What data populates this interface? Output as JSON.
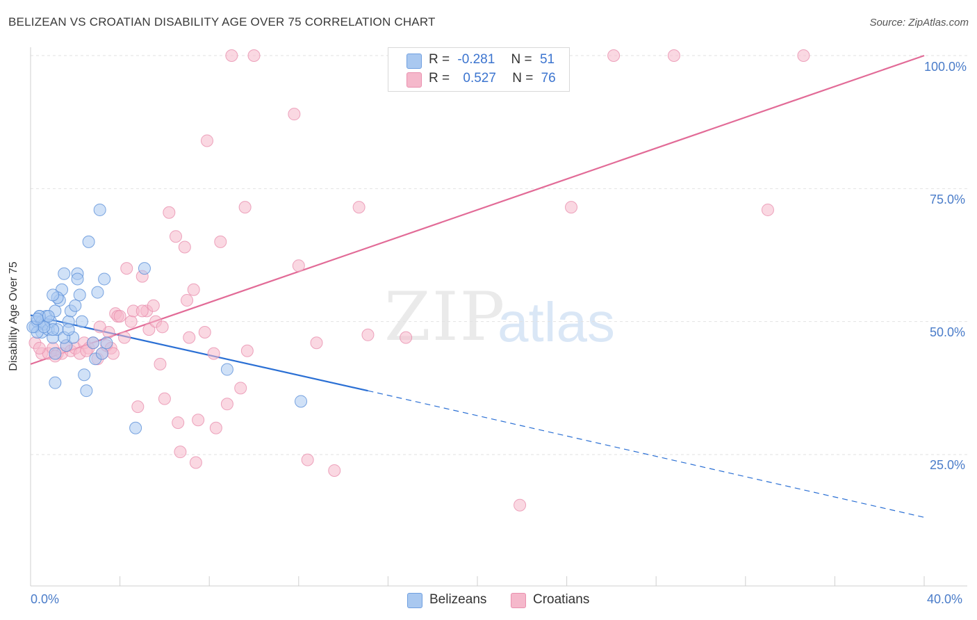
{
  "header": {
    "title": "BELIZEAN VS CROATIAN DISABILITY AGE OVER 75 CORRELATION CHART",
    "source": "Source: ZipAtlas.com"
  },
  "legend_top": {
    "rows": [
      {
        "r_label": "R =",
        "r_value": "-0.281",
        "n_label": "N =",
        "n_value": "51",
        "color": "#a9c8f0"
      },
      {
        "r_label": "R =",
        "r_value": "0.527",
        "n_label": "N =",
        "n_value": "76",
        "color": "#f5b8cb"
      }
    ]
  },
  "legend_bottom": {
    "items": [
      {
        "label": "Belizeans",
        "color": "#a9c8f0"
      },
      {
        "label": "Croatians",
        "color": "#f5b8cb"
      }
    ]
  },
  "watermark": {
    "zip": "ZIP",
    "atlas": "atlas"
  },
  "chart_data": {
    "type": "scatter",
    "title": "BELIZEAN VS CROATIAN DISABILITY AGE OVER 75 CORRELATION CHART",
    "xlabel": "",
    "ylabel": "Disability Age Over 75",
    "xlim": [
      0,
      40
    ],
    "ylim": [
      0,
      103
    ],
    "x_tick_labels": [
      "0.0%",
      "40.0%"
    ],
    "y_ticks": [
      25,
      50,
      75,
      100
    ],
    "y_tick_labels": [
      "25.0%",
      "50.0%",
      "75.0%",
      "100.0%"
    ],
    "grid": true,
    "legend": "top-center",
    "series": [
      {
        "name": "Belizeans",
        "color": "#5a8fd8",
        "fill": "#a9c8f0",
        "trend": {
          "x0": 0,
          "y0": 51.2,
          "x1": 15.1,
          "y1": 37.0,
          "dashed_to_x": 40,
          "dashed_to_y": 13.2,
          "color": "#2a6fd4"
        },
        "points": [
          [
            0.2,
            49
          ],
          [
            0.3,
            50
          ],
          [
            0.4,
            51
          ],
          [
            0.5,
            48
          ],
          [
            0.5,
            50
          ],
          [
            0.6,
            49.5
          ],
          [
            0.7,
            51
          ],
          [
            0.8,
            48.5
          ],
          [
            0.9,
            50
          ],
          [
            0.3,
            48
          ],
          [
            1.0,
            47
          ],
          [
            1.1,
            52
          ],
          [
            1.1,
            44
          ],
          [
            1.2,
            48.5
          ],
          [
            1.3,
            54
          ],
          [
            1.4,
            56
          ],
          [
            1.5,
            59
          ],
          [
            1.6,
            45.5
          ],
          [
            1.7,
            50
          ],
          [
            1.8,
            52
          ],
          [
            1.9,
            47
          ],
          [
            2.0,
            53
          ],
          [
            2.1,
            59
          ],
          [
            2.2,
            55
          ],
          [
            2.3,
            50
          ],
          [
            2.1,
            58
          ],
          [
            2.4,
            40
          ],
          [
            2.5,
            37
          ],
          [
            2.6,
            65
          ],
          [
            2.8,
            46
          ],
          [
            2.9,
            43
          ],
          [
            3.0,
            55.5
          ],
          [
            3.1,
            71
          ],
          [
            3.2,
            44
          ],
          [
            3.3,
            58
          ],
          [
            3.4,
            46
          ],
          [
            0.4,
            51
          ],
          [
            1.0,
            48.5
          ],
          [
            0.6,
            49
          ],
          [
            1.2,
            54.5
          ],
          [
            4.7,
            30
          ],
          [
            5.1,
            60
          ],
          [
            8.8,
            41
          ],
          [
            12.1,
            35
          ],
          [
            0.8,
            51
          ],
          [
            1.5,
            47
          ],
          [
            1.0,
            55
          ],
          [
            0.1,
            49
          ],
          [
            0.3,
            50.5
          ],
          [
            1.1,
            38.5
          ],
          [
            1.7,
            48.5
          ]
        ]
      },
      {
        "name": "Croatians",
        "color": "#e98fae",
        "fill": "#f5b8cb",
        "trend": {
          "x0": 0,
          "y0": 42.0,
          "x1": 40,
          "y1": 100.0,
          "color": "#e26b97"
        },
        "points": [
          [
            0.2,
            46
          ],
          [
            0.5,
            44
          ],
          [
            0.8,
            44
          ],
          [
            1.0,
            45
          ],
          [
            1.2,
            44
          ],
          [
            1.4,
            44
          ],
          [
            1.6,
            45.5
          ],
          [
            1.8,
            44.5
          ],
          [
            2.0,
            45
          ],
          [
            2.2,
            44
          ],
          [
            2.4,
            46
          ],
          [
            2.6,
            45
          ],
          [
            2.8,
            46
          ],
          [
            3.0,
            43
          ],
          [
            3.2,
            44
          ],
          [
            3.4,
            45.5
          ],
          [
            3.5,
            48
          ],
          [
            3.6,
            45
          ],
          [
            3.7,
            44
          ],
          [
            3.8,
            51.5
          ],
          [
            3.9,
            51
          ],
          [
            4.0,
            51
          ],
          [
            4.2,
            47
          ],
          [
            4.3,
            60
          ],
          [
            4.5,
            50
          ],
          [
            4.6,
            52
          ],
          [
            4.8,
            34
          ],
          [
            5.0,
            58.5
          ],
          [
            5.2,
            52
          ],
          [
            5.3,
            48.5
          ],
          [
            5.5,
            53
          ],
          [
            5.6,
            50
          ],
          [
            5.8,
            42
          ],
          [
            5.9,
            49
          ],
          [
            6.0,
            35.5
          ],
          [
            6.2,
            70.5
          ],
          [
            6.5,
            66
          ],
          [
            6.6,
            31
          ],
          [
            6.7,
            25.5
          ],
          [
            6.9,
            64
          ],
          [
            7.1,
            47
          ],
          [
            7.3,
            56
          ],
          [
            7.5,
            31.5
          ],
          [
            7.4,
            23.5
          ],
          [
            7.8,
            48
          ],
          [
            7.9,
            84
          ],
          [
            8.2,
            44
          ],
          [
            8.3,
            30
          ],
          [
            8.5,
            65
          ],
          [
            8.8,
            34.5
          ],
          [
            9.0,
            100
          ],
          [
            9.4,
            37.5
          ],
          [
            9.6,
            71.5
          ],
          [
            9.7,
            44.5
          ],
          [
            10.0,
            100
          ],
          [
            11.8,
            89
          ],
          [
            12.0,
            60.5
          ],
          [
            12.4,
            24
          ],
          [
            12.8,
            46
          ],
          [
            13.6,
            22
          ],
          [
            14.7,
            71.5
          ],
          [
            15.1,
            47.5
          ],
          [
            16.8,
            47
          ],
          [
            18.3,
            100
          ],
          [
            21.9,
            15.5
          ],
          [
            24.2,
            71.5
          ],
          [
            26.1,
            100
          ],
          [
            28.8,
            100
          ],
          [
            33.0,
            71
          ],
          [
            34.6,
            100
          ],
          [
            0.4,
            45
          ],
          [
            1.1,
            43.5
          ],
          [
            2.5,
            44.5
          ],
          [
            5.0,
            52
          ],
          [
            3.1,
            49
          ],
          [
            7.0,
            54
          ]
        ]
      }
    ]
  }
}
